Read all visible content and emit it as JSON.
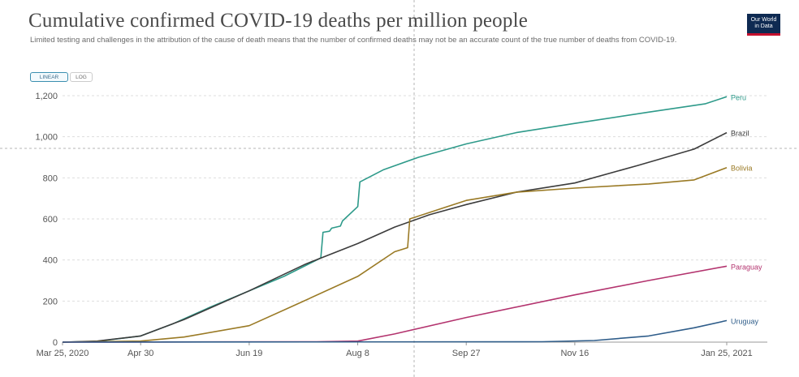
{
  "header": {
    "title": "Cumulative confirmed COVID-19 deaths per million people",
    "subtitle": "Limited testing and challenges in the attribution of the cause of death means that the number of confirmed deaths may not be an accurate count of the true number of deaths from COVID-19.",
    "logo_line1": "Our World",
    "logo_line2": "in Data",
    "logo_color": "#0e2a52",
    "logo_accent": "#c4102e"
  },
  "controls": {
    "linear_label": "LINEAR",
    "log_label": "LOG",
    "selected": "LINEAR"
  },
  "chart_data": {
    "type": "line",
    "title": "Cumulative confirmed COVID-19 deaths per million people",
    "xlabel": "",
    "ylabel": "",
    "x_range": [
      "2020-03-25",
      "2021-01-25"
    ],
    "ylim": [
      0,
      1200
    ],
    "y_ticks": [
      0,
      200,
      400,
      600,
      800,
      1000,
      1200
    ],
    "y_tick_labels": [
      "0",
      "200",
      "400",
      "600",
      "800",
      "1,000",
      "1,200"
    ],
    "x_ticks": [
      "2020-03-25",
      "2020-04-30",
      "2020-06-19",
      "2020-08-08",
      "2020-09-27",
      "2020-11-16",
      "2021-01-25"
    ],
    "x_tick_labels": [
      "Mar 25, 2020",
      "Apr 30",
      "Jun 19",
      "Aug 8",
      "Sep 27",
      "Nov 16",
      "Jan 25, 2021"
    ],
    "grid": "horizontal dashed",
    "legend": "line-end labels",
    "series": [
      {
        "name": "Peru",
        "color": "#2e9a8a",
        "points": [
          [
            "2020-03-25",
            0
          ],
          [
            "2020-04-10",
            4
          ],
          [
            "2020-04-30",
            30
          ],
          [
            "2020-05-15",
            90
          ],
          [
            "2020-06-01",
            170
          ],
          [
            "2020-06-19",
            250
          ],
          [
            "2020-07-05",
            320
          ],
          [
            "2020-07-22",
            410
          ],
          [
            "2020-07-23",
            535
          ],
          [
            "2020-07-26",
            540
          ],
          [
            "2020-07-27",
            555
          ],
          [
            "2020-07-31",
            565
          ],
          [
            "2020-08-01",
            590
          ],
          [
            "2020-08-08",
            660
          ],
          [
            "2020-08-09",
            780
          ],
          [
            "2020-08-20",
            840
          ],
          [
            "2020-09-05",
            900
          ],
          [
            "2020-09-27",
            965
          ],
          [
            "2020-10-20",
            1020
          ],
          [
            "2020-11-16",
            1065
          ],
          [
            "2020-12-20",
            1120
          ],
          [
            "2021-01-15",
            1160
          ],
          [
            "2021-01-25",
            1195
          ]
        ]
      },
      {
        "name": "Brazil",
        "color": "#3c3c3c",
        "points": [
          [
            "2020-03-25",
            0
          ],
          [
            "2020-04-10",
            5
          ],
          [
            "2020-04-30",
            30
          ],
          [
            "2020-05-20",
            110
          ],
          [
            "2020-06-19",
            250
          ],
          [
            "2020-07-15",
            380
          ],
          [
            "2020-08-08",
            480
          ],
          [
            "2020-08-25",
            560
          ],
          [
            "2020-09-10",
            620
          ],
          [
            "2020-09-27",
            670
          ],
          [
            "2020-10-20",
            730
          ],
          [
            "2020-11-16",
            775
          ],
          [
            "2020-12-15",
            860
          ],
          [
            "2021-01-10",
            940
          ],
          [
            "2021-01-25",
            1020
          ]
        ]
      },
      {
        "name": "Bolivia",
        "color": "#9a7a25",
        "points": [
          [
            "2020-03-25",
            0
          ],
          [
            "2020-04-30",
            5
          ],
          [
            "2020-05-20",
            25
          ],
          [
            "2020-06-19",
            80
          ],
          [
            "2020-07-10",
            180
          ],
          [
            "2020-08-08",
            320
          ],
          [
            "2020-08-25",
            440
          ],
          [
            "2020-08-31",
            460
          ],
          [
            "2020-09-01",
            600
          ],
          [
            "2020-09-27",
            690
          ],
          [
            "2020-10-20",
            730
          ],
          [
            "2020-11-16",
            750
          ],
          [
            "2020-12-20",
            770
          ],
          [
            "2021-01-10",
            790
          ],
          [
            "2021-01-25",
            850
          ]
        ]
      },
      {
        "name": "Paraguay",
        "color": "#b3336e",
        "points": [
          [
            "2020-03-25",
            0
          ],
          [
            "2020-07-20",
            2
          ],
          [
            "2020-08-08",
            5
          ],
          [
            "2020-08-25",
            40
          ],
          [
            "2020-09-27",
            120
          ],
          [
            "2020-11-16",
            230
          ],
          [
            "2020-12-20",
            300
          ],
          [
            "2021-01-25",
            370
          ]
        ]
      },
      {
        "name": "Uruguay",
        "color": "#2f5d8a",
        "points": [
          [
            "2020-03-25",
            0
          ],
          [
            "2020-11-01",
            2
          ],
          [
            "2020-11-25",
            8
          ],
          [
            "2020-12-20",
            30
          ],
          [
            "2021-01-10",
            70
          ],
          [
            "2021-01-25",
            105
          ]
        ]
      }
    ]
  }
}
